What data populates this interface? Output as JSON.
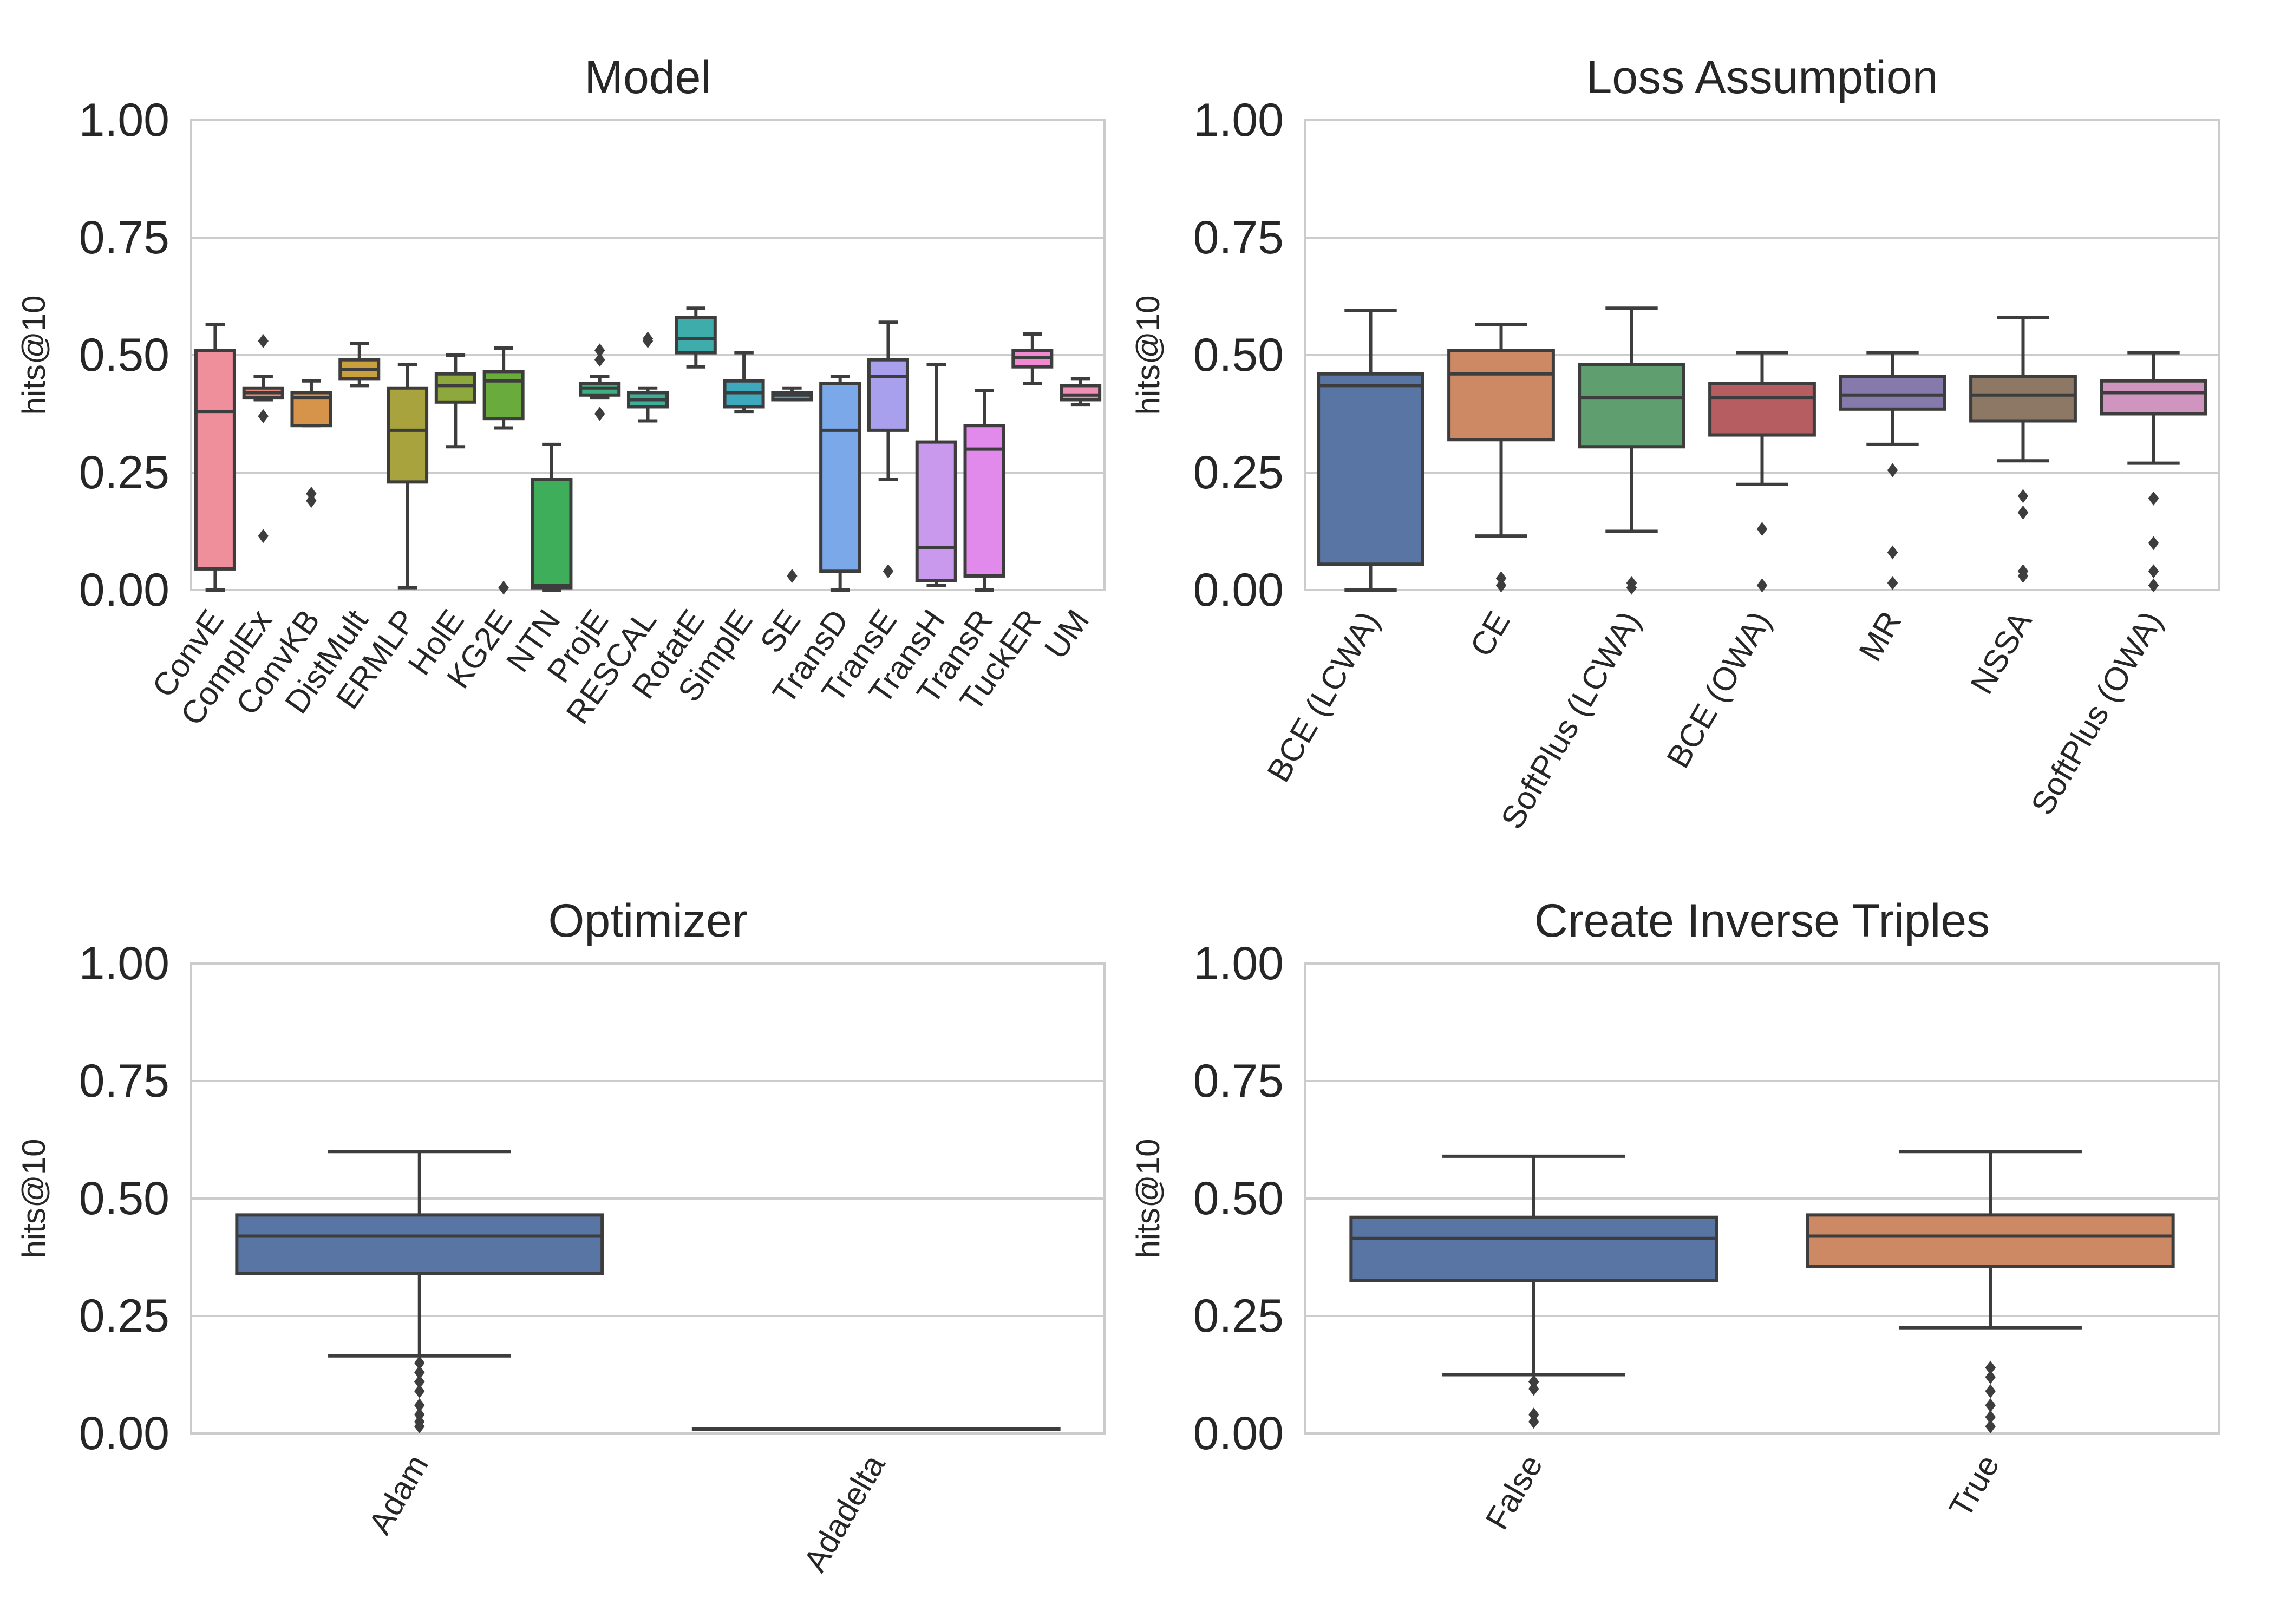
{
  "chart_data": [
    {
      "type": "box",
      "title": "Model",
      "ylabel": "hits@10",
      "ylim": [
        0,
        1
      ],
      "yticks": [
        "0.00",
        "0.25",
        "0.50",
        "0.75",
        "1.00"
      ],
      "categories": [
        "ConvE",
        "ComplEx",
        "ConvKB",
        "DistMult",
        "ERMLP",
        "HolE",
        "KG2E",
        "NTN",
        "ProjE",
        "RESCAL",
        "RotatE",
        "SimplE",
        "SE",
        "TransD",
        "TransE",
        "TransH",
        "TransR",
        "TuckER",
        "UM"
      ],
      "colors": [
        "#ee8f9b",
        "#e88a7c",
        "#d5944a",
        "#c8a03e",
        "#a9a33e",
        "#8fa83e",
        "#6aab3e",
        "#3eae5a",
        "#3eaf82",
        "#3eae99",
        "#3eacab",
        "#3ea8bd",
        "#3ea5cb",
        "#7aa8e9",
        "#a8a0ec",
        "#c899ec",
        "#e28aec",
        "#ef8ad0",
        "#ef8fb5"
      ],
      "boxes": [
        {
          "whislo": 0.0,
          "q1": 0.045,
          "med": 0.38,
          "q3": 0.51,
          "whishi": 0.565,
          "fliers": []
        },
        {
          "whislo": 0.405,
          "q1": 0.41,
          "med": 0.42,
          "q3": 0.43,
          "whishi": 0.455,
          "fliers": [
            0.53,
            0.37,
            0.115
          ]
        },
        {
          "whislo": 0.35,
          "q1": 0.35,
          "med": 0.41,
          "q3": 0.42,
          "whishi": 0.445,
          "fliers": [
            0.205,
            0.19
          ]
        },
        {
          "whislo": 0.435,
          "q1": 0.45,
          "med": 0.47,
          "q3": 0.49,
          "whishi": 0.525,
          "fliers": []
        },
        {
          "whislo": 0.005,
          "q1": 0.23,
          "med": 0.34,
          "q3": 0.43,
          "whishi": 0.48,
          "fliers": []
        },
        {
          "whislo": 0.305,
          "q1": 0.4,
          "med": 0.435,
          "q3": 0.46,
          "whishi": 0.5,
          "fliers": []
        },
        {
          "whislo": 0.345,
          "q1": 0.365,
          "med": 0.445,
          "q3": 0.465,
          "whishi": 0.515,
          "fliers": [
            0.005
          ]
        },
        {
          "whislo": 0.0,
          "q1": 0.005,
          "med": 0.01,
          "q3": 0.235,
          "whishi": 0.31,
          "fliers": []
        },
        {
          "whislo": 0.41,
          "q1": 0.415,
          "med": 0.43,
          "q3": 0.44,
          "whishi": 0.455,
          "fliers": [
            0.51,
            0.49,
            0.375
          ]
        },
        {
          "whislo": 0.36,
          "q1": 0.39,
          "med": 0.405,
          "q3": 0.42,
          "whishi": 0.43,
          "fliers": [
            0.535,
            0.53
          ]
        },
        {
          "whislo": 0.475,
          "q1": 0.505,
          "med": 0.535,
          "q3": 0.58,
          "whishi": 0.6,
          "fliers": []
        },
        {
          "whislo": 0.38,
          "q1": 0.39,
          "med": 0.42,
          "q3": 0.445,
          "whishi": 0.505,
          "fliers": []
        },
        {
          "whislo": 0.405,
          "q1": 0.405,
          "med": 0.415,
          "q3": 0.42,
          "whishi": 0.43,
          "fliers": [
            0.03
          ]
        },
        {
          "whislo": 0.0,
          "q1": 0.04,
          "med": 0.34,
          "q3": 0.44,
          "whishi": 0.455,
          "fliers": []
        },
        {
          "whislo": 0.235,
          "q1": 0.34,
          "med": 0.455,
          "q3": 0.49,
          "whishi": 0.57,
          "fliers": [
            0.04
          ]
        },
        {
          "whislo": 0.01,
          "q1": 0.02,
          "med": 0.09,
          "q3": 0.315,
          "whishi": 0.48,
          "fliers": []
        },
        {
          "whislo": 0.0,
          "q1": 0.03,
          "med": 0.3,
          "q3": 0.35,
          "whishi": 0.425,
          "fliers": []
        },
        {
          "whislo": 0.44,
          "q1": 0.475,
          "med": 0.495,
          "q3": 0.51,
          "whishi": 0.545,
          "fliers": []
        },
        {
          "whislo": 0.395,
          "q1": 0.405,
          "med": 0.415,
          "q3": 0.435,
          "whishi": 0.45,
          "fliers": []
        }
      ]
    },
    {
      "type": "box",
      "title": "Loss Assumption",
      "ylabel": "hits@10",
      "ylim": [
        0,
        1
      ],
      "yticks": [
        "0.00",
        "0.25",
        "0.50",
        "0.75",
        "1.00"
      ],
      "categories": [
        "BCE (LCWA)",
        "CE",
        "SoftPlus (LCWA)",
        "BCE (OWA)",
        "MR",
        "NSSA",
        "SoftPlus (OWA)"
      ],
      "colors": [
        "#5975a4",
        "#cc8963",
        "#5f9e6e",
        "#b55d60",
        "#857aab",
        "#8d7866",
        "#d095bf"
      ],
      "boxes": [
        {
          "whislo": 0.0,
          "q1": 0.055,
          "med": 0.435,
          "q3": 0.46,
          "whishi": 0.595,
          "fliers": []
        },
        {
          "whislo": 0.115,
          "q1": 0.32,
          "med": 0.46,
          "q3": 0.51,
          "whishi": 0.565,
          "fliers": [
            0.025,
            0.01
          ]
        },
        {
          "whislo": 0.125,
          "q1": 0.305,
          "med": 0.41,
          "q3": 0.48,
          "whishi": 0.6,
          "fliers": [
            0.015,
            0.005
          ]
        },
        {
          "whislo": 0.225,
          "q1": 0.33,
          "med": 0.41,
          "q3": 0.44,
          "whishi": 0.505,
          "fliers": [
            0.13,
            0.01
          ]
        },
        {
          "whislo": 0.31,
          "q1": 0.385,
          "med": 0.415,
          "q3": 0.455,
          "whishi": 0.505,
          "fliers": [
            0.255,
            0.08,
            0.015
          ]
        },
        {
          "whislo": 0.275,
          "q1": 0.36,
          "med": 0.415,
          "q3": 0.455,
          "whishi": 0.58,
          "fliers": [
            0.2,
            0.165,
            0.04,
            0.03
          ]
        },
        {
          "whislo": 0.27,
          "q1": 0.375,
          "med": 0.42,
          "q3": 0.445,
          "whishi": 0.505,
          "fliers": [
            0.195,
            0.1,
            0.04,
            0.01
          ]
        }
      ]
    },
    {
      "type": "box",
      "title": "Optimizer",
      "ylabel": "hits@10",
      "ylim": [
        0,
        1
      ],
      "yticks": [
        "0.00",
        "0.25",
        "0.50",
        "0.75",
        "1.00"
      ],
      "categories": [
        "Adam",
        "Adadelta"
      ],
      "colors": [
        "#5975a4",
        "#cc8963"
      ],
      "boxes": [
        {
          "whislo": 0.165,
          "q1": 0.34,
          "med": 0.42,
          "q3": 0.465,
          "whishi": 0.6,
          "fliers": [
            0.15,
            0.13,
            0.11,
            0.09,
            0.06,
            0.04,
            0.025,
            0.015
          ]
        },
        {
          "whislo": 0.01,
          "q1": 0.01,
          "med": 0.01,
          "q3": 0.01,
          "whishi": 0.01,
          "fliers": []
        }
      ]
    },
    {
      "type": "box",
      "title": "Create Inverse Triples",
      "ylabel": "hits@10",
      "ylim": [
        0,
        1
      ],
      "yticks": [
        "0.00",
        "0.25",
        "0.50",
        "0.75",
        "1.00"
      ],
      "categories": [
        "False",
        "True"
      ],
      "colors": [
        "#5975a4",
        "#cc8963"
      ],
      "boxes": [
        {
          "whislo": 0.125,
          "q1": 0.325,
          "med": 0.415,
          "q3": 0.46,
          "whishi": 0.59,
          "fliers": [
            0.11,
            0.095,
            0.04,
            0.025
          ]
        },
        {
          "whislo": 0.225,
          "q1": 0.355,
          "med": 0.42,
          "q3": 0.465,
          "whishi": 0.6,
          "fliers": [
            0.14,
            0.12,
            0.09,
            0.06,
            0.035,
            0.015
          ]
        }
      ]
    }
  ]
}
